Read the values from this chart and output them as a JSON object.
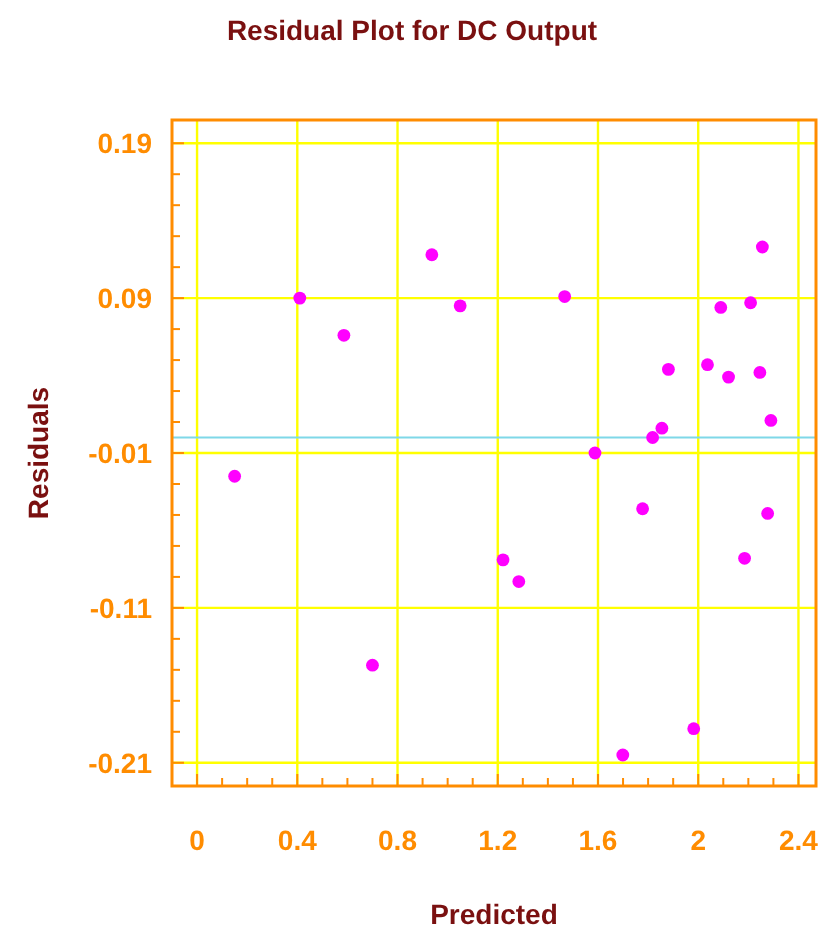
{
  "chart_data": {
    "type": "scatter",
    "title": "Residual Plot for DC Output",
    "xlabel": "Predicted",
    "ylabel": "Residuals",
    "x": [
      0.15,
      0.41,
      0.586,
      0.7,
      0.937,
      1.05,
      1.221,
      1.284,
      1.467,
      1.588,
      1.699,
      1.778,
      1.818,
      1.855,
      1.881,
      1.982,
      2.037,
      2.09,
      2.121,
      2.185,
      2.209,
      2.246,
      2.256,
      2.277,
      2.29
    ],
    "series": [
      {
        "color": "#ff00ff",
        "values": [
          -0.025,
          0.09,
          0.066,
          -0.147,
          0.118,
          0.085,
          -0.079,
          -0.093,
          0.091,
          -0.01,
          -0.205,
          -0.046,
          0.0,
          0.006,
          0.044,
          -0.188,
          0.047,
          0.084,
          0.039,
          -0.078,
          0.087,
          0.042,
          0.123,
          -0.049,
          0.011
        ]
      }
    ],
    "xlim": [
      -0.1,
      2.47
    ],
    "ylim": [
      -0.225,
      0.205
    ],
    "xticks": [
      0,
      {
        "value": 0.1,
        "label": null
      },
      {
        "value": 0.2,
        "label": null
      },
      {
        "value": 0.3,
        "label": null
      },
      0.4,
      {
        "value": 0.5,
        "label": null
      },
      {
        "value": 0.6,
        "label": null
      },
      {
        "value": 0.7,
        "label": null
      },
      0.8,
      {
        "value": 0.9,
        "label": null
      },
      {
        "value": 1.0,
        "label": null
      },
      {
        "value": 1.1,
        "label": null
      },
      1.2,
      {
        "value": 1.3,
        "label": null
      },
      {
        "value": 1.4,
        "label": null
      },
      {
        "value": 1.5,
        "label": null
      },
      1.6,
      {
        "value": 1.7,
        "label": null
      },
      {
        "value": 1.8,
        "label": null
      },
      {
        "value": 1.9,
        "label": null
      },
      2,
      {
        "value": 2.1,
        "label": null
      },
      {
        "value": 2.2,
        "label": null
      },
      {
        "value": 2.3,
        "label": null
      },
      2.4
    ],
    "yticks": [
      -0.21,
      {
        "value": -0.19,
        "label": null
      },
      {
        "value": -0.17,
        "label": null
      },
      {
        "value": -0.15,
        "label": null
      },
      {
        "value": -0.13,
        "label": null
      },
      -0.11,
      {
        "value": -0.09,
        "label": null
      },
      {
        "value": -0.07,
        "label": null
      },
      {
        "value": -0.05,
        "label": null
      },
      {
        "value": -0.03,
        "label": null
      },
      -0.01,
      {
        "value": 0.01,
        "label": null
      },
      {
        "value": 0.03,
        "label": null
      },
      {
        "value": 0.05,
        "label": null
      },
      {
        "value": 0.07,
        "label": null
      },
      0.09,
      {
        "value": 0.11,
        "label": null
      },
      {
        "value": 0.13,
        "label": null
      },
      {
        "value": 0.15,
        "label": null
      },
      {
        "value": 0.17,
        "label": null
      },
      0.19
    ],
    "ref_lines": [
      {
        "axis": "y",
        "value": 0,
        "color": "#7fd8e8"
      }
    ],
    "grid": true,
    "marker": "circle"
  }
}
